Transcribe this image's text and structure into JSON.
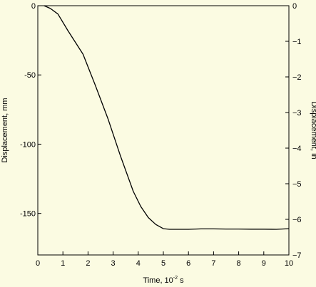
{
  "chart_data": {
    "type": "line",
    "title": "",
    "xlabel": {
      "prefix": "Time, 10",
      "sup": "-2",
      "suffix": " s"
    },
    "ylabel_left": "Displacement, mm",
    "ylabel_right": "Displacement, in",
    "xlim": [
      0,
      10
    ],
    "ylim_left": [
      -180,
      0
    ],
    "ylim_right": [
      -7,
      0
    ],
    "x_ticks": [
      0,
      1,
      2,
      3,
      4,
      5,
      6,
      7,
      8,
      9,
      10
    ],
    "y_ticks_left": [
      0,
      -50,
      -100,
      -150
    ],
    "y_ticks_left_labels": [
      "0",
      "-50",
      "-100",
      "-150"
    ],
    "y_ticks_right": [
      0,
      -1,
      -2,
      -3,
      -4,
      -5,
      -6,
      -7
    ],
    "y_ticks_right_labels": [
      "0",
      "−1",
      "−2",
      "−3",
      "−4",
      "−5",
      "−6",
      "−7"
    ],
    "grid": false,
    "legend": "none",
    "series": [
      {
        "color": "#000000",
        "x": [
          0.25,
          0.5,
          0.8,
          1.2,
          1.8,
          2.3,
          2.8,
          3.3,
          3.8,
          4.1,
          4.4,
          4.7,
          5.0,
          5.25,
          5.5,
          6.0,
          6.5,
          7.0,
          7.5,
          8.0,
          8.5,
          9.0,
          9.5,
          10.0
        ],
        "y": [
          0,
          -2,
          -6,
          -18,
          -35,
          -58,
          -82,
          -109,
          -134,
          -145,
          -153,
          -158,
          -161,
          -161.5,
          -161.5,
          -161.5,
          -161.2,
          -161.2,
          -161.3,
          -161.3,
          -161.4,
          -161.4,
          -161.5,
          -161.0
        ]
      }
    ]
  }
}
